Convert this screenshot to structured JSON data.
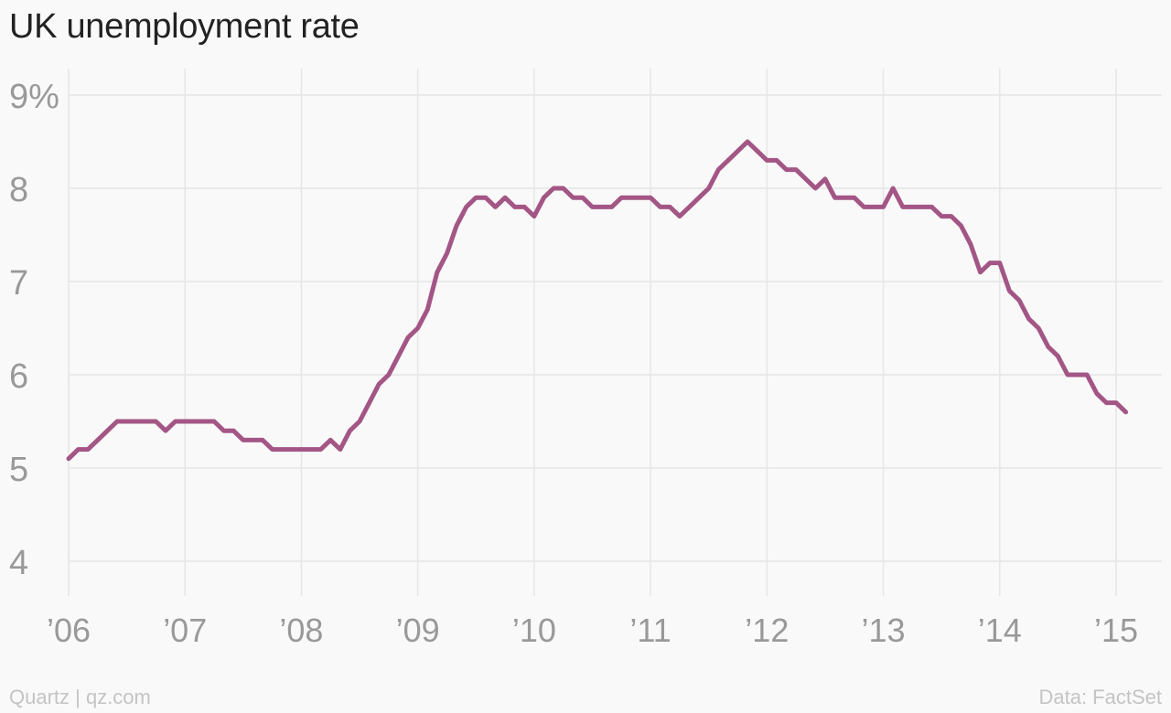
{
  "title": "UK unemployment rate",
  "footer": {
    "credit": "Quartz | qz.com",
    "source": "Data: FactSet"
  },
  "colors": {
    "line": "#a35685",
    "grid": "#e6e6e6",
    "tick": "#999999",
    "background": "#f9f9f9"
  },
  "chart_data": {
    "type": "line",
    "title": "UK unemployment rate",
    "xlabel": "",
    "ylabel": "",
    "ylim": [
      4,
      9
    ],
    "yticks": [
      4,
      5,
      6,
      7,
      8,
      9
    ],
    "ytick_labels": [
      "4",
      "5",
      "6",
      "7",
      "8",
      "9%"
    ],
    "xlim": [
      "2006-01",
      "2015-01"
    ],
    "xticks": [
      "2006-01",
      "2007-01",
      "2008-01",
      "2009-01",
      "2010-01",
      "2011-01",
      "2012-01",
      "2013-01",
      "2014-01",
      "2015-01"
    ],
    "xtick_labels": [
      "’06",
      "’07",
      "’08",
      "’09",
      "’10",
      "’11",
      "’12",
      "’13",
      "’14",
      "’15"
    ],
    "grid": true,
    "series": [
      {
        "x": [
          "2006-01",
          "2006-02",
          "2006-03",
          "2006-04",
          "2006-05",
          "2006-06",
          "2006-07",
          "2006-08",
          "2006-09",
          "2006-10",
          "2006-11",
          "2006-12",
          "2007-01",
          "2007-02",
          "2007-03",
          "2007-04",
          "2007-05",
          "2007-06",
          "2007-07",
          "2007-08",
          "2007-09",
          "2007-10",
          "2007-11",
          "2007-12",
          "2008-01",
          "2008-02",
          "2008-03",
          "2008-04",
          "2008-05",
          "2008-06",
          "2008-07",
          "2008-08",
          "2008-09",
          "2008-10",
          "2008-11",
          "2008-12",
          "2009-01",
          "2009-02",
          "2009-03",
          "2009-04",
          "2009-05",
          "2009-06",
          "2009-07",
          "2009-08",
          "2009-09",
          "2009-10",
          "2009-11",
          "2009-12",
          "2010-01",
          "2010-02",
          "2010-03",
          "2010-04",
          "2010-05",
          "2010-06",
          "2010-07",
          "2010-08",
          "2010-09",
          "2010-10",
          "2010-11",
          "2010-12",
          "2011-01",
          "2011-02",
          "2011-03",
          "2011-04",
          "2011-05",
          "2011-06",
          "2011-07",
          "2011-08",
          "2011-09",
          "2011-10",
          "2011-11",
          "2011-12",
          "2012-01",
          "2012-02",
          "2012-03",
          "2012-04",
          "2012-05",
          "2012-06",
          "2012-07",
          "2012-08",
          "2012-09",
          "2012-10",
          "2012-11",
          "2012-12",
          "2013-01",
          "2013-02",
          "2013-03",
          "2013-04",
          "2013-05",
          "2013-06",
          "2013-07",
          "2013-08",
          "2013-09",
          "2013-10",
          "2013-11",
          "2013-12",
          "2014-01",
          "2014-02",
          "2014-03",
          "2014-04",
          "2014-05",
          "2014-06",
          "2014-07",
          "2014-08",
          "2014-09",
          "2014-10",
          "2014-11",
          "2014-12",
          "2015-01",
          "2015-02"
        ],
        "values": [
          5.1,
          5.2,
          5.2,
          5.3,
          5.4,
          5.5,
          5.5,
          5.5,
          5.5,
          5.5,
          5.4,
          5.5,
          5.5,
          5.5,
          5.5,
          5.5,
          5.4,
          5.4,
          5.3,
          5.3,
          5.3,
          5.2,
          5.2,
          5.2,
          5.2,
          5.2,
          5.2,
          5.3,
          5.2,
          5.4,
          5.5,
          5.7,
          5.9,
          6.0,
          6.2,
          6.4,
          6.5,
          6.7,
          7.1,
          7.3,
          7.6,
          7.8,
          7.9,
          7.9,
          7.8,
          7.9,
          7.8,
          7.8,
          7.7,
          7.9,
          8.0,
          8.0,
          7.9,
          7.9,
          7.8,
          7.8,
          7.8,
          7.9,
          7.9,
          7.9,
          7.9,
          7.8,
          7.8,
          7.7,
          7.8,
          7.9,
          8.0,
          8.2,
          8.3,
          8.4,
          8.5,
          8.4,
          8.3,
          8.3,
          8.2,
          8.2,
          8.1,
          8.0,
          8.1,
          7.9,
          7.9,
          7.9,
          7.8,
          7.8,
          7.8,
          8.0,
          7.8,
          7.8,
          7.8,
          7.8,
          7.7,
          7.7,
          7.6,
          7.4,
          7.1,
          7.2,
          7.2,
          6.9,
          6.8,
          6.6,
          6.5,
          6.3,
          6.2,
          6.0,
          6.0,
          6.0,
          5.8,
          5.7,
          5.7,
          5.6
        ]
      }
    ]
  }
}
